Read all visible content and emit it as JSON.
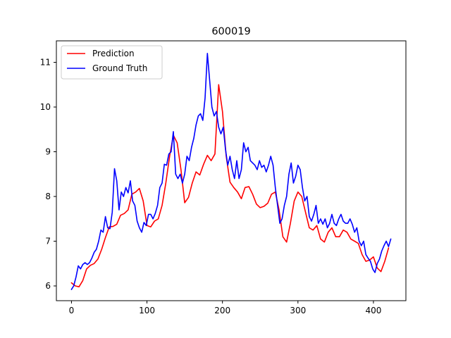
{
  "chart_data": {
    "type": "line",
    "title": "600019",
    "xlabel": "",
    "ylabel": "",
    "xlim": [
      -20,
      443
    ],
    "ylim": [
      5.67,
      11.48
    ],
    "xticks": [
      0,
      100,
      200,
      300,
      400
    ],
    "yticks": [
      6,
      7,
      8,
      9,
      10,
      11
    ],
    "grid": false,
    "legend": "top-left",
    "series": [
      {
        "name": "Prediction",
        "color": "#ff0000",
        "points": [
          [
            0,
            6.07
          ],
          [
            5,
            6.0
          ],
          [
            10,
            5.98
          ],
          [
            15,
            6.12
          ],
          [
            20,
            6.38
          ],
          [
            25,
            6.46
          ],
          [
            30,
            6.5
          ],
          [
            35,
            6.6
          ],
          [
            40,
            6.82
          ],
          [
            45,
            7.08
          ],
          [
            50,
            7.32
          ],
          [
            55,
            7.33
          ],
          [
            60,
            7.38
          ],
          [
            65,
            7.58
          ],
          [
            70,
            7.62
          ],
          [
            75,
            7.7
          ],
          [
            80,
            8.05
          ],
          [
            85,
            8.1
          ],
          [
            90,
            8.18
          ],
          [
            95,
            7.9
          ],
          [
            100,
            7.35
          ],
          [
            105,
            7.32
          ],
          [
            110,
            7.45
          ],
          [
            115,
            7.5
          ],
          [
            120,
            7.8
          ],
          [
            125,
            8.3
          ],
          [
            130,
            8.9
          ],
          [
            135,
            9.37
          ],
          [
            140,
            9.2
          ],
          [
            145,
            8.6
          ],
          [
            150,
            7.86
          ],
          [
            155,
            7.98
          ],
          [
            160,
            8.3
          ],
          [
            165,
            8.55
          ],
          [
            170,
            8.48
          ],
          [
            175,
            8.72
          ],
          [
            180,
            8.92
          ],
          [
            185,
            8.8
          ],
          [
            190,
            8.95
          ],
          [
            195,
            10.5
          ],
          [
            200,
            9.9
          ],
          [
            205,
            8.9
          ],
          [
            210,
            8.32
          ],
          [
            215,
            8.2
          ],
          [
            220,
            8.1
          ],
          [
            225,
            7.95
          ],
          [
            230,
            8.2
          ],
          [
            235,
            8.22
          ],
          [
            240,
            8.05
          ],
          [
            245,
            7.83
          ],
          [
            250,
            7.75
          ],
          [
            255,
            7.78
          ],
          [
            260,
            7.85
          ],
          [
            265,
            8.05
          ],
          [
            270,
            8.1
          ],
          [
            275,
            7.7
          ],
          [
            280,
            7.1
          ],
          [
            285,
            6.98
          ],
          [
            290,
            7.4
          ],
          [
            295,
            7.9
          ],
          [
            300,
            8.1
          ],
          [
            305,
            8.0
          ],
          [
            310,
            7.65
          ],
          [
            315,
            7.3
          ],
          [
            320,
            7.25
          ],
          [
            325,
            7.35
          ],
          [
            330,
            7.05
          ],
          [
            335,
            6.98
          ],
          [
            340,
            7.2
          ],
          [
            345,
            7.3
          ],
          [
            350,
            7.1
          ],
          [
            355,
            7.1
          ],
          [
            360,
            7.25
          ],
          [
            365,
            7.2
          ],
          [
            370,
            7.05
          ],
          [
            375,
            7.0
          ],
          [
            380,
            6.95
          ],
          [
            385,
            6.7
          ],
          [
            390,
            6.55
          ],
          [
            395,
            6.58
          ],
          [
            400,
            6.65
          ],
          [
            405,
            6.4
          ],
          [
            410,
            6.32
          ],
          [
            415,
            6.55
          ],
          [
            420,
            6.85
          ]
        ]
      },
      {
        "name": "Ground Truth",
        "color": "#0000ff",
        "points": [
          [
            0,
            5.92
          ],
          [
            3,
            6.0
          ],
          [
            6,
            6.2
          ],
          [
            9,
            6.45
          ],
          [
            12,
            6.38
          ],
          [
            15,
            6.48
          ],
          [
            18,
            6.52
          ],
          [
            21,
            6.48
          ],
          [
            24,
            6.52
          ],
          [
            27,
            6.62
          ],
          [
            30,
            6.75
          ],
          [
            33,
            6.82
          ],
          [
            36,
            7.0
          ],
          [
            39,
            7.25
          ],
          [
            42,
            7.2
          ],
          [
            45,
            7.55
          ],
          [
            48,
            7.3
          ],
          [
            51,
            7.28
          ],
          [
            54,
            7.65
          ],
          [
            57,
            8.62
          ],
          [
            60,
            8.35
          ],
          [
            63,
            7.7
          ],
          [
            66,
            8.1
          ],
          [
            69,
            8.0
          ],
          [
            72,
            8.2
          ],
          [
            75,
            8.08
          ],
          [
            78,
            8.35
          ],
          [
            81,
            7.9
          ],
          [
            84,
            7.8
          ],
          [
            87,
            7.45
          ],
          [
            90,
            7.3
          ],
          [
            93,
            7.2
          ],
          [
            96,
            7.42
          ],
          [
            99,
            7.35
          ],
          [
            102,
            7.6
          ],
          [
            105,
            7.6
          ],
          [
            108,
            7.5
          ],
          [
            111,
            7.62
          ],
          [
            114,
            7.8
          ],
          [
            117,
            8.2
          ],
          [
            120,
            8.3
          ],
          [
            123,
            8.72
          ],
          [
            126,
            8.7
          ],
          [
            129,
            8.95
          ],
          [
            132,
            9.0
          ],
          [
            135,
            9.45
          ],
          [
            138,
            8.5
          ],
          [
            141,
            8.4
          ],
          [
            144,
            8.5
          ],
          [
            147,
            8.3
          ],
          [
            150,
            8.5
          ],
          [
            153,
            8.9
          ],
          [
            156,
            8.8
          ],
          [
            159,
            9.1
          ],
          [
            162,
            9.3
          ],
          [
            165,
            9.6
          ],
          [
            168,
            9.8
          ],
          [
            171,
            9.85
          ],
          [
            174,
            9.7
          ],
          [
            177,
            10.2
          ],
          [
            180,
            11.2
          ],
          [
            183,
            10.6
          ],
          [
            186,
            10.0
          ],
          [
            189,
            9.8
          ],
          [
            192,
            9.9
          ],
          [
            195,
            9.55
          ],
          [
            198,
            9.4
          ],
          [
            201,
            9.55
          ],
          [
            204,
            9.05
          ],
          [
            207,
            8.7
          ],
          [
            210,
            8.9
          ],
          [
            213,
            8.6
          ],
          [
            216,
            8.4
          ],
          [
            219,
            8.8
          ],
          [
            222,
            8.4
          ],
          [
            225,
            8.6
          ],
          [
            228,
            9.2
          ],
          [
            231,
            9.0
          ],
          [
            234,
            9.1
          ],
          [
            237,
            8.8
          ],
          [
            240,
            8.75
          ],
          [
            243,
            8.7
          ],
          [
            246,
            8.6
          ],
          [
            249,
            8.8
          ],
          [
            252,
            8.65
          ],
          [
            255,
            8.7
          ],
          [
            258,
            8.55
          ],
          [
            261,
            8.7
          ],
          [
            264,
            8.9
          ],
          [
            267,
            8.7
          ],
          [
            270,
            8.2
          ],
          [
            273,
            7.8
          ],
          [
            276,
            7.4
          ],
          [
            279,
            7.5
          ],
          [
            282,
            7.8
          ],
          [
            285,
            8.0
          ],
          [
            288,
            8.5
          ],
          [
            291,
            8.75
          ],
          [
            294,
            8.3
          ],
          [
            297,
            8.45
          ],
          [
            300,
            8.7
          ],
          [
            303,
            8.6
          ],
          [
            306,
            8.2
          ],
          [
            309,
            7.9
          ],
          [
            312,
            8.0
          ],
          [
            315,
            7.55
          ],
          [
            318,
            7.45
          ],
          [
            321,
            7.6
          ],
          [
            324,
            7.8
          ],
          [
            327,
            7.4
          ],
          [
            330,
            7.5
          ],
          [
            333,
            7.38
          ],
          [
            336,
            7.5
          ],
          [
            339,
            7.3
          ],
          [
            342,
            7.4
          ],
          [
            345,
            7.6
          ],
          [
            348,
            7.4
          ],
          [
            351,
            7.35
          ],
          [
            354,
            7.5
          ],
          [
            357,
            7.6
          ],
          [
            360,
            7.45
          ],
          [
            363,
            7.4
          ],
          [
            366,
            7.4
          ],
          [
            369,
            7.5
          ],
          [
            372,
            7.38
          ],
          [
            375,
            7.2
          ],
          [
            378,
            7.3
          ],
          [
            381,
            7.0
          ],
          [
            384,
            6.9
          ],
          [
            387,
            7.0
          ],
          [
            390,
            6.7
          ],
          [
            393,
            6.62
          ],
          [
            396,
            6.55
          ],
          [
            399,
            6.38
          ],
          [
            402,
            6.3
          ],
          [
            405,
            6.5
          ],
          [
            408,
            6.6
          ],
          [
            411,
            6.78
          ],
          [
            414,
            6.9
          ],
          [
            417,
            7.0
          ],
          [
            420,
            6.88
          ],
          [
            423,
            7.05
          ]
        ]
      }
    ]
  }
}
